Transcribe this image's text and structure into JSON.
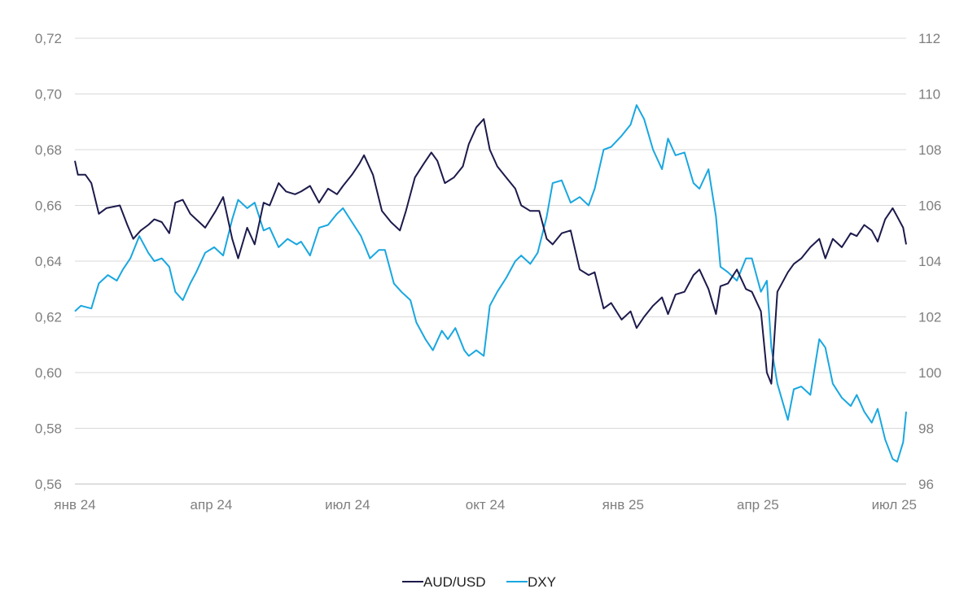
{
  "chart_data": {
    "type": "line",
    "title": "",
    "xlabel": "",
    "x_tick_labels": [
      "янв 24",
      "апр 24",
      "июл 24",
      "окт 24",
      "янв 25",
      "апр 25",
      "июл 25"
    ],
    "x_ticks": [
      "2024-01-01",
      "2024-04-01",
      "2024-07-01",
      "2024-10-01",
      "2025-01-01",
      "2025-04-01",
      "2025-07-01"
    ],
    "x_range": [
      "2024-01-01",
      "2025-07-09"
    ],
    "y_left": {
      "range": [
        0.56,
        0.72
      ],
      "ticks": [
        "0,56",
        "0,58",
        "0,60",
        "0,62",
        "0,64",
        "0,66",
        "0,68",
        "0,70",
        "0,72"
      ]
    },
    "y_right": {
      "range": [
        96,
        112
      ],
      "ticks": [
        "96",
        "98",
        "100",
        "102",
        "104",
        "106",
        "108",
        "110",
        "112"
      ]
    },
    "grid": true,
    "legend": "bottom-center",
    "colors": {
      "AUD/USD": "#1c1a4b",
      "DXY": "#19a7e0"
    },
    "series": [
      {
        "name": "AUD/USD",
        "axis": "left",
        "points": [
          [
            "2024-01-01",
            0.676
          ],
          [
            "2024-01-03",
            0.671
          ],
          [
            "2024-01-08",
            0.671
          ],
          [
            "2024-01-12",
            0.668
          ],
          [
            "2024-01-17",
            0.657
          ],
          [
            "2024-01-22",
            0.659
          ],
          [
            "2024-01-31",
            0.66
          ],
          [
            "2024-02-05",
            0.653
          ],
          [
            "2024-02-09",
            0.648
          ],
          [
            "2024-02-14",
            0.651
          ],
          [
            "2024-02-19",
            0.653
          ],
          [
            "2024-02-23",
            0.655
          ],
          [
            "2024-02-28",
            0.654
          ],
          [
            "2024-03-04",
            0.65
          ],
          [
            "2024-03-08",
            0.661
          ],
          [
            "2024-03-13",
            0.662
          ],
          [
            "2024-03-18",
            0.657
          ],
          [
            "2024-03-22",
            0.655
          ],
          [
            "2024-03-28",
            0.652
          ],
          [
            "2024-04-04",
            0.658
          ],
          [
            "2024-04-09",
            0.663
          ],
          [
            "2024-04-15",
            0.648
          ],
          [
            "2024-04-19",
            0.641
          ],
          [
            "2024-04-25",
            0.652
          ],
          [
            "2024-04-30",
            0.646
          ],
          [
            "2024-05-06",
            0.661
          ],
          [
            "2024-05-10",
            0.66
          ],
          [
            "2024-05-16",
            0.668
          ],
          [
            "2024-05-21",
            0.665
          ],
          [
            "2024-05-27",
            0.664
          ],
          [
            "2024-05-31",
            0.665
          ],
          [
            "2024-06-06",
            0.667
          ],
          [
            "2024-06-12",
            0.661
          ],
          [
            "2024-06-18",
            0.666
          ],
          [
            "2024-06-24",
            0.664
          ],
          [
            "2024-06-28",
            0.667
          ],
          [
            "2024-07-04",
            0.671
          ],
          [
            "2024-07-09",
            0.675
          ],
          [
            "2024-07-12",
            0.678
          ],
          [
            "2024-07-18",
            0.671
          ],
          [
            "2024-07-24",
            0.658
          ],
          [
            "2024-07-30",
            0.654
          ],
          [
            "2024-08-05",
            0.651
          ],
          [
            "2024-08-09",
            0.658
          ],
          [
            "2024-08-15",
            0.67
          ],
          [
            "2024-08-21",
            0.675
          ],
          [
            "2024-08-26",
            0.679
          ],
          [
            "2024-08-30",
            0.676
          ],
          [
            "2024-09-04",
            0.668
          ],
          [
            "2024-09-10",
            0.67
          ],
          [
            "2024-09-16",
            0.674
          ],
          [
            "2024-09-20",
            0.682
          ],
          [
            "2024-09-25",
            0.688
          ],
          [
            "2024-09-30",
            0.691
          ],
          [
            "2024-10-04",
            0.68
          ],
          [
            "2024-10-09",
            0.674
          ],
          [
            "2024-10-15",
            0.67
          ],
          [
            "2024-10-21",
            0.666
          ],
          [
            "2024-10-25",
            0.66
          ],
          [
            "2024-10-31",
            0.658
          ],
          [
            "2024-11-06",
            0.658
          ],
          [
            "2024-11-11",
            0.648
          ],
          [
            "2024-11-15",
            0.646
          ],
          [
            "2024-11-21",
            0.65
          ],
          [
            "2024-11-27",
            0.651
          ],
          [
            "2024-12-03",
            0.637
          ],
          [
            "2024-12-09",
            0.635
          ],
          [
            "2024-12-13",
            0.636
          ],
          [
            "2024-12-19",
            0.623
          ],
          [
            "2024-12-24",
            0.625
          ],
          [
            "2024-12-31",
            0.619
          ],
          [
            "2025-01-06",
            0.622
          ],
          [
            "2025-01-10",
            0.616
          ],
          [
            "2025-01-15",
            0.62
          ],
          [
            "2025-01-21",
            0.624
          ],
          [
            "2025-01-27",
            0.627
          ],
          [
            "2025-01-31",
            0.621
          ],
          [
            "2025-02-05",
            0.628
          ],
          [
            "2025-02-11",
            0.629
          ],
          [
            "2025-02-17",
            0.635
          ],
          [
            "2025-02-21",
            0.637
          ],
          [
            "2025-02-27",
            0.63
          ],
          [
            "2025-03-04",
            0.621
          ],
          [
            "2025-03-07",
            0.631
          ],
          [
            "2025-03-12",
            0.632
          ],
          [
            "2025-03-18",
            0.637
          ],
          [
            "2025-03-24",
            0.63
          ],
          [
            "2025-03-28",
            0.629
          ],
          [
            "2025-04-03",
            0.622
          ],
          [
            "2025-04-07",
            0.6
          ],
          [
            "2025-04-10",
            0.596
          ],
          [
            "2025-04-14",
            0.629
          ],
          [
            "2025-04-21",
            0.636
          ],
          [
            "2025-04-25",
            0.639
          ],
          [
            "2025-04-30",
            0.641
          ],
          [
            "2025-05-06",
            0.645
          ],
          [
            "2025-05-12",
            0.648
          ],
          [
            "2025-05-16",
            0.641
          ],
          [
            "2025-05-21",
            0.648
          ],
          [
            "2025-05-27",
            0.645
          ],
          [
            "2025-06-02",
            0.65
          ],
          [
            "2025-06-06",
            0.649
          ],
          [
            "2025-06-11",
            0.653
          ],
          [
            "2025-06-16",
            0.651
          ],
          [
            "2025-06-20",
            0.647
          ],
          [
            "2025-06-25",
            0.655
          ],
          [
            "2025-06-30",
            0.659
          ],
          [
            "2025-07-03",
            0.656
          ],
          [
            "2025-07-07",
            0.652
          ],
          [
            "2025-07-09",
            0.646
          ]
        ]
      },
      {
        "name": "DXY",
        "axis": "right",
        "points": [
          [
            "2024-01-01",
            102.2
          ],
          [
            "2024-01-05",
            102.4
          ],
          [
            "2024-01-12",
            102.3
          ],
          [
            "2024-01-17",
            103.2
          ],
          [
            "2024-01-23",
            103.5
          ],
          [
            "2024-01-29",
            103.3
          ],
          [
            "2024-02-02",
            103.7
          ],
          [
            "2024-02-07",
            104.1
          ],
          [
            "2024-02-13",
            104.9
          ],
          [
            "2024-02-19",
            104.3
          ],
          [
            "2024-02-23",
            104.0
          ],
          [
            "2024-02-28",
            104.1
          ],
          [
            "2024-03-04",
            103.8
          ],
          [
            "2024-03-08",
            102.9
          ],
          [
            "2024-03-13",
            102.6
          ],
          [
            "2024-03-18",
            103.2
          ],
          [
            "2024-03-22",
            103.6
          ],
          [
            "2024-03-28",
            104.3
          ],
          [
            "2024-04-03",
            104.5
          ],
          [
            "2024-04-09",
            104.2
          ],
          [
            "2024-04-15",
            105.5
          ],
          [
            "2024-04-19",
            106.2
          ],
          [
            "2024-04-25",
            105.9
          ],
          [
            "2024-04-30",
            106.1
          ],
          [
            "2024-05-06",
            105.1
          ],
          [
            "2024-05-10",
            105.2
          ],
          [
            "2024-05-16",
            104.5
          ],
          [
            "2024-05-22",
            104.8
          ],
          [
            "2024-05-28",
            104.6
          ],
          [
            "2024-05-31",
            104.7
          ],
          [
            "2024-06-06",
            104.2
          ],
          [
            "2024-06-12",
            105.2
          ],
          [
            "2024-06-18",
            105.3
          ],
          [
            "2024-06-24",
            105.7
          ],
          [
            "2024-06-28",
            105.9
          ],
          [
            "2024-07-04",
            105.4
          ],
          [
            "2024-07-10",
            104.9
          ],
          [
            "2024-07-16",
            104.1
          ],
          [
            "2024-07-22",
            104.4
          ],
          [
            "2024-07-26",
            104.4
          ],
          [
            "2024-08-01",
            103.2
          ],
          [
            "2024-08-06",
            102.9
          ],
          [
            "2024-08-12",
            102.6
          ],
          [
            "2024-08-16",
            101.8
          ],
          [
            "2024-08-22",
            101.2
          ],
          [
            "2024-08-27",
            100.8
          ],
          [
            "2024-09-02",
            101.5
          ],
          [
            "2024-09-06",
            101.2
          ],
          [
            "2024-09-11",
            101.6
          ],
          [
            "2024-09-17",
            100.8
          ],
          [
            "2024-09-20",
            100.6
          ],
          [
            "2024-09-25",
            100.8
          ],
          [
            "2024-09-30",
            100.6
          ],
          [
            "2024-10-04",
            102.4
          ],
          [
            "2024-10-09",
            102.9
          ],
          [
            "2024-10-15",
            103.4
          ],
          [
            "2024-10-21",
            104.0
          ],
          [
            "2024-10-25",
            104.2
          ],
          [
            "2024-10-31",
            103.9
          ],
          [
            "2024-11-05",
            104.3
          ],
          [
            "2024-11-11",
            105.6
          ],
          [
            "2024-11-15",
            106.8
          ],
          [
            "2024-11-21",
            106.9
          ],
          [
            "2024-11-27",
            106.1
          ],
          [
            "2024-12-03",
            106.3
          ],
          [
            "2024-12-09",
            106.0
          ],
          [
            "2024-12-13",
            106.6
          ],
          [
            "2024-12-19",
            108.0
          ],
          [
            "2024-12-24",
            108.1
          ],
          [
            "2024-12-31",
            108.5
          ],
          [
            "2025-01-06",
            108.9
          ],
          [
            "2025-01-10",
            109.6
          ],
          [
            "2025-01-15",
            109.1
          ],
          [
            "2025-01-21",
            108.0
          ],
          [
            "2025-01-27",
            107.3
          ],
          [
            "2025-01-31",
            108.4
          ],
          [
            "2025-02-05",
            107.8
          ],
          [
            "2025-02-11",
            107.9
          ],
          [
            "2025-02-17",
            106.8
          ],
          [
            "2025-02-21",
            106.6
          ],
          [
            "2025-02-27",
            107.3
          ],
          [
            "2025-03-04",
            105.6
          ],
          [
            "2025-03-07",
            103.8
          ],
          [
            "2025-03-12",
            103.6
          ],
          [
            "2025-03-18",
            103.3
          ],
          [
            "2025-03-24",
            104.1
          ],
          [
            "2025-03-28",
            104.1
          ],
          [
            "2025-04-03",
            102.9
          ],
          [
            "2025-04-07",
            103.3
          ],
          [
            "2025-04-10",
            100.9
          ],
          [
            "2025-04-14",
            99.6
          ],
          [
            "2025-04-21",
            98.3
          ],
          [
            "2025-04-25",
            99.4
          ],
          [
            "2025-04-30",
            99.5
          ],
          [
            "2025-05-06",
            99.2
          ],
          [
            "2025-05-12",
            101.2
          ],
          [
            "2025-05-16",
            100.9
          ],
          [
            "2025-05-21",
            99.6
          ],
          [
            "2025-05-27",
            99.1
          ],
          [
            "2025-06-02",
            98.8
          ],
          [
            "2025-06-06",
            99.2
          ],
          [
            "2025-06-11",
            98.6
          ],
          [
            "2025-06-16",
            98.2
          ],
          [
            "2025-06-20",
            98.7
          ],
          [
            "2025-06-25",
            97.6
          ],
          [
            "2025-06-30",
            96.9
          ],
          [
            "2025-07-03",
            96.8
          ],
          [
            "2025-07-07",
            97.5
          ],
          [
            "2025-07-09",
            98.6
          ]
        ]
      }
    ]
  }
}
